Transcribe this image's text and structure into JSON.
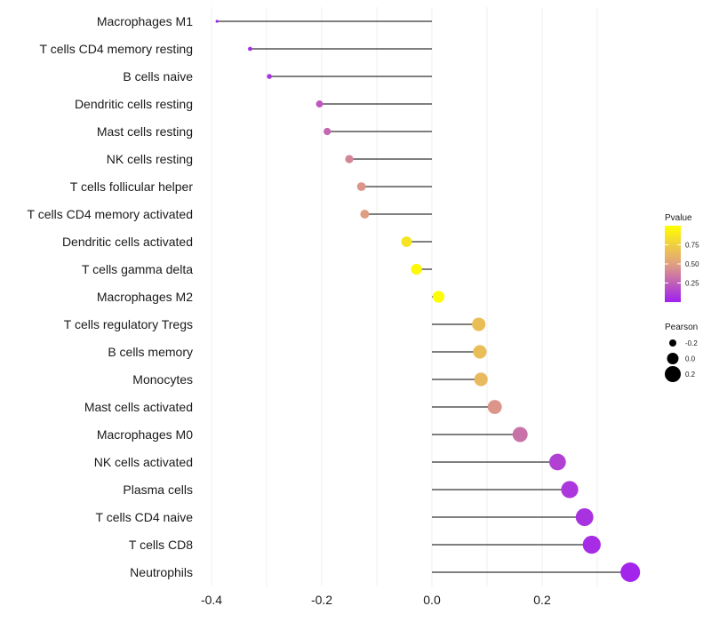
{
  "chart_data": {
    "type": "lollipop",
    "categories": [
      "Macrophages M1",
      "T cells CD4 memory resting",
      "B cells naive",
      "Dendritic cells resting",
      "Mast cells resting",
      "NK cells resting",
      "T cells follicular helper",
      "T cells CD4 memory activated",
      "Dendritic cells activated",
      "T cells gamma delta",
      "Macrophages M2",
      "T cells regulatory  Tregs ",
      "B cells memory",
      "Monocytes",
      "Mast cells activated",
      "Macrophages M0",
      "NK cells activated",
      "Plasma cells",
      "T cells CD4 naive",
      "T cells CD8",
      "Neutrophils"
    ],
    "pearson": [
      -0.39,
      -0.33,
      -0.295,
      -0.204,
      -0.19,
      -0.15,
      -0.128,
      -0.122,
      -0.046,
      -0.028,
      0.012,
      0.085,
      0.087,
      0.089,
      0.114,
      0.16,
      0.228,
      0.25,
      0.277,
      0.29,
      0.36
    ],
    "pvalue": [
      0.01,
      0.05,
      0.08,
      0.22,
      0.28,
      0.4,
      0.46,
      0.49,
      0.86,
      0.97,
      0.99,
      0.66,
      0.66,
      0.63,
      0.46,
      0.32,
      0.13,
      0.09,
      0.07,
      0.05,
      0.02
    ],
    "x_ticks": [
      -0.4,
      -0.2,
      0.0,
      0.2
    ],
    "x_tick_labels": [
      "-0.4",
      "-0.2",
      "0.0",
      "0.2"
    ],
    "xlim": [
      -0.42,
      0.38
    ],
    "legend_pvalue": {
      "title": "Pvalue",
      "ticks": [
        0.75,
        0.5,
        0.25
      ],
      "tick_labels": [
        "0.75",
        "0.50",
        "0.25"
      ],
      "range": [
        0.0,
        1.0
      ],
      "color_low": "#a020f0",
      "color_mid": "#e0a080",
      "color_high": "#ffff00"
    },
    "legend_pearson": {
      "title": "Pearson",
      "values": [
        -0.2,
        0.0,
        0.2
      ],
      "labels": [
        "-0.2",
        "0.0",
        "0.2"
      ]
    }
  }
}
